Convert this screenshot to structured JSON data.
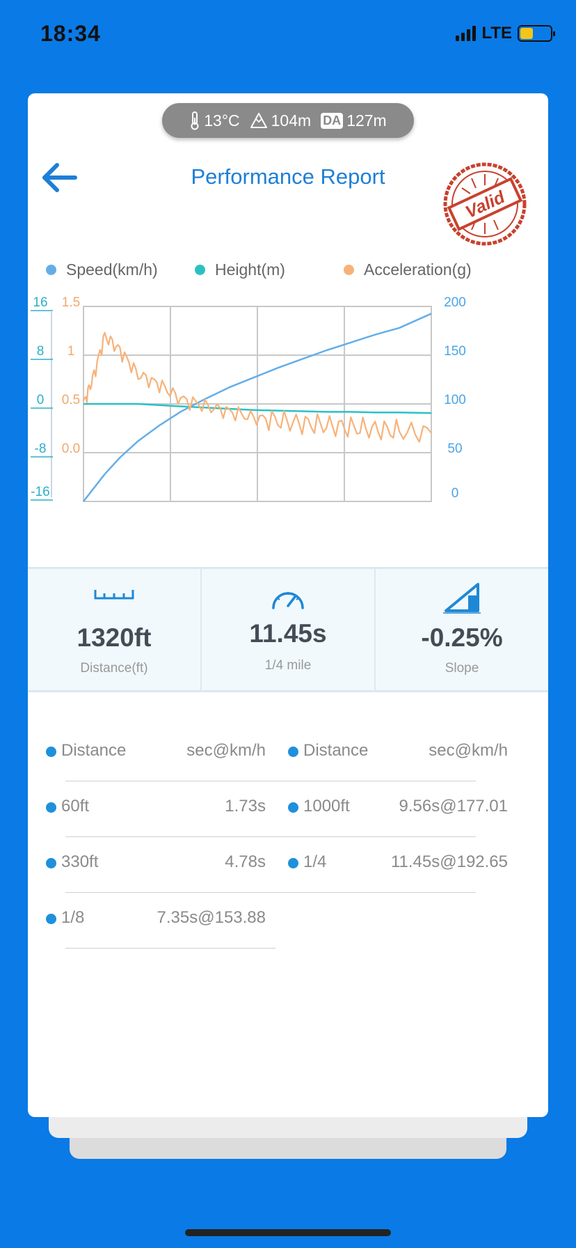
{
  "status": {
    "time": "18:34",
    "network": "LTE"
  },
  "conditions": {
    "temperature": "13°C",
    "altitude": "104m",
    "da_label": "DA",
    "density_altitude": "127m"
  },
  "header": {
    "title": "Performance Report",
    "stamp_text": "Valid"
  },
  "legend": [
    {
      "label": "Speed(km/h)",
      "color": "#64aee8"
    },
    {
      "label": "Height(m)",
      "color": "#2cc1c1"
    },
    {
      "label": "Acceleration(g)",
      "color": "#f7b27a"
    }
  ],
  "chart_data": {
    "type": "line",
    "x": [
      0,
      0.3,
      0.7,
      1.2,
      1.8,
      2.5,
      3.2,
      4.0,
      4.8,
      5.6,
      6.4,
      7.2,
      8.0,
      8.8,
      9.6,
      10.4,
      11.45
    ],
    "series": [
      {
        "name": "Speed(km/h)",
        "axis": "right",
        "values": [
          0,
          12,
          28,
          45,
          62,
          78,
          92,
          105,
          117,
          127,
          137,
          146,
          155,
          163,
          171,
          178,
          192.65
        ]
      },
      {
        "name": "Height(m)",
        "axis": "left",
        "values": [
          0,
          0,
          0,
          0,
          0,
          -0.2,
          -0.4,
          -0.6,
          -0.8,
          -1.0,
          -1.1,
          -1.2,
          -1.3,
          -1.3,
          -1.4,
          -1.4,
          -1.5
        ]
      },
      {
        "name": "Acceleration(g)",
        "axis": "left2",
        "values": [
          0.5,
          0.75,
          1.2,
          1.05,
          0.8,
          0.7,
          0.55,
          0.48,
          0.42,
          0.36,
          0.33,
          0.3,
          0.28,
          0.26,
          0.24,
          0.22,
          0.2
        ]
      }
    ],
    "height_axis": {
      "ticks": [
        "16",
        "8",
        "0",
        "-8",
        "-16"
      ],
      "range": [
        -16,
        16
      ]
    },
    "accel_axis": {
      "ticks": [
        "1.5",
        "1",
        "0.5",
        "0.0"
      ],
      "range": [
        -0.5,
        1.5
      ]
    },
    "speed_axis": {
      "ticks": [
        "200",
        "150",
        "100",
        "50",
        "0"
      ],
      "range": [
        0,
        200
      ]
    },
    "xlim": [
      0,
      11.45
    ],
    "grid": true
  },
  "metrics": [
    {
      "value": "1320ft",
      "label": "Distance(ft)",
      "icon": "ruler-icon"
    },
    {
      "value": "11.45s",
      "label": "1/4 mile",
      "icon": "speedometer-icon"
    },
    {
      "value": "-0.25%",
      "label": "Slope",
      "icon": "slope-icon"
    }
  ],
  "splits": {
    "headers": [
      {
        "name": "Distance",
        "value": "sec@km/h"
      },
      {
        "name": "Distance",
        "value": "sec@km/h"
      }
    ],
    "left": [
      {
        "name": "60ft",
        "value": "1.73s"
      },
      {
        "name": "330ft",
        "value": "4.78s"
      },
      {
        "name": "1/8",
        "value": "7.35s@153.88"
      }
    ],
    "right": [
      {
        "name": "1000ft",
        "value": "9.56s@177.01"
      },
      {
        "name": "1/4",
        "value": "11.45s@192.65"
      }
    ]
  }
}
